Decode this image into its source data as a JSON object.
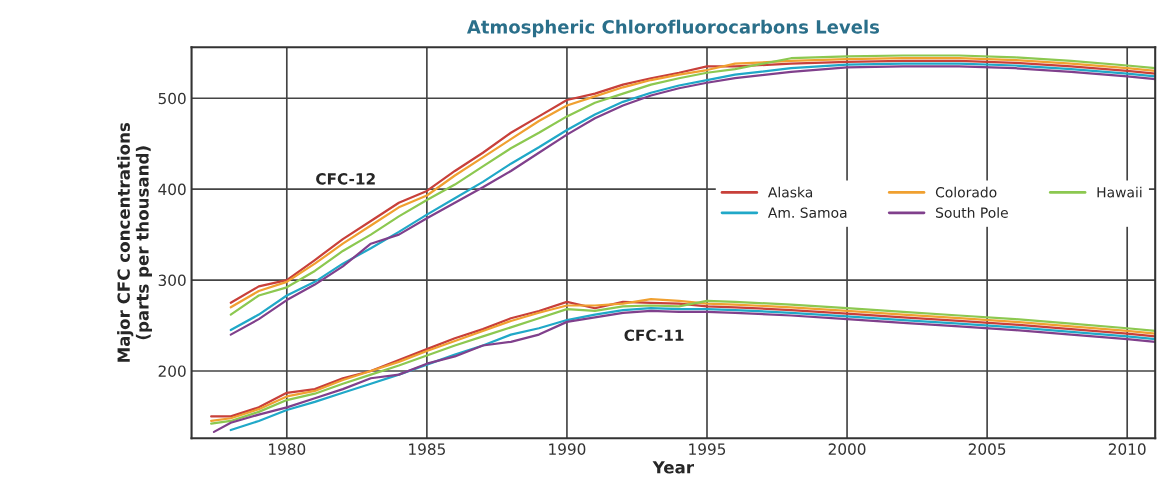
{
  "chart_data": {
    "type": "line",
    "title": "Atmospheric Chlorofluorocarbons Levels",
    "xlabel": "Year",
    "ylabel": "Major CFC concentrations\n(parts per thousand)",
    "xlim": [
      1976.6,
      2011
    ],
    "ylim": [
      126,
      556
    ],
    "xticks": [
      1980,
      1985,
      1990,
      1995,
      2000,
      2005,
      2010
    ],
    "yticks": [
      200,
      300,
      400,
      500
    ],
    "grid": true,
    "legend": "right",
    "line_style": "solid",
    "annotations": [
      "CFC-12",
      "CFC-11"
    ],
    "series": [
      {
        "name": "Alaska",
        "color": "#c8403a",
        "x": [
          1978,
          1979,
          1980,
          1981,
          1982,
          1983,
          1984,
          1985,
          1986,
          1987,
          1988,
          1989,
          1990,
          1991,
          1992,
          1993,
          1994,
          1995,
          1996,
          1998,
          2000,
          2002,
          2004,
          2006,
          2008,
          2010,
          2011
        ],
        "values": [
          275,
          293,
          300,
          322,
          345,
          365,
          385,
          398,
          420,
          440,
          462,
          480,
          498,
          505,
          515,
          522,
          528,
          535,
          535,
          538,
          540,
          541,
          541,
          539,
          535,
          530,
          527
        ]
      },
      {
        "name": "Colorado",
        "color": "#f0a030",
        "x": [
          1978,
          1979,
          1980,
          1981,
          1982,
          1983,
          1984,
          1985,
          1986,
          1987,
          1988,
          1989,
          1990,
          1991,
          1992,
          1993,
          1994,
          1995,
          1996,
          1998,
          2000,
          2002,
          2004,
          2006,
          2008,
          2010,
          2011
        ],
        "values": [
          270,
          288,
          298,
          318,
          340,
          360,
          380,
          393,
          415,
          435,
          455,
          475,
          492,
          502,
          512,
          520,
          526,
          531,
          538,
          541,
          543,
          544,
          544,
          542,
          538,
          533,
          530
        ]
      },
      {
        "name": "Hawaii",
        "color": "#8cc850",
        "x": [
          1978,
          1979,
          1980,
          1981,
          1982,
          1983,
          1984,
          1985,
          1986,
          1987,
          1988,
          1989,
          1990,
          1991,
          1992,
          1993,
          1994,
          1995,
          1996,
          1998,
          2000,
          2002,
          2004,
          2006,
          2008,
          2010,
          2011
        ],
        "values": [
          262,
          283,
          292,
          310,
          332,
          350,
          370,
          388,
          405,
          425,
          445,
          462,
          480,
          495,
          505,
          515,
          522,
          528,
          532,
          544,
          546,
          547,
          547,
          545,
          541,
          536,
          533
        ]
      },
      {
        "name": "Am. Samoa",
        "color": "#20a8c8",
        "x": [
          1978,
          1979,
          1980,
          1981,
          1982,
          1983,
          1984,
          1985,
          1986,
          1987,
          1988,
          1989,
          1990,
          1991,
          1992,
          1993,
          1994,
          1995,
          1996,
          1998,
          2000,
          2002,
          2004,
          2006,
          2008,
          2010,
          2011
        ],
        "values": [
          245,
          262,
          283,
          298,
          318,
          335,
          353,
          372,
          390,
          408,
          428,
          446,
          465,
          482,
          496,
          506,
          514,
          520,
          526,
          533,
          537,
          538,
          538,
          536,
          532,
          527,
          524
        ]
      },
      {
        "name": "South Pole",
        "color": "#80408c",
        "x": [
          1978,
          1979,
          1980,
          1981,
          1982,
          1983,
          1984,
          1985,
          1986,
          1987,
          1988,
          1989,
          1990,
          1991,
          1992,
          1993,
          1994,
          1995,
          1996,
          1998,
          2000,
          2002,
          2004,
          2006,
          2008,
          2010,
          2011
        ],
        "values": [
          240,
          257,
          278,
          295,
          315,
          340,
          350,
          368,
          385,
          402,
          420,
          440,
          460,
          478,
          492,
          503,
          511,
          517,
          522,
          529,
          534,
          535,
          535,
          533,
          529,
          524,
          521
        ]
      },
      {
        "color": "#c8403a",
        "x": [
          1977.3,
          1978,
          1979,
          1980,
          1981,
          1982,
          1983,
          1984,
          1985,
          1986,
          1987,
          1988,
          1989,
          1990,
          1991,
          1992,
          1993,
          1994,
          1995,
          1996,
          1998,
          2000,
          2002,
          2004,
          2006,
          2008,
          2010,
          2011
        ],
        "values": [
          150,
          150,
          160,
          176,
          180,
          192,
          200,
          212,
          224,
          236,
          246,
          258,
          266,
          276,
          269,
          276,
          275,
          274,
          271,
          270,
          267,
          263,
          259,
          255,
          251,
          246,
          241,
          238
        ]
      },
      {
        "color": "#f0a030",
        "x": [
          1977.3,
          1978,
          1979,
          1980,
          1981,
          1982,
          1983,
          1984,
          1985,
          1986,
          1987,
          1988,
          1989,
          1990,
          1991,
          1992,
          1993,
          1994,
          1995,
          1996,
          1998,
          2000,
          2002,
          2004,
          2006,
          2008,
          2010,
          2011
        ],
        "values": [
          145,
          148,
          158,
          172,
          178,
          190,
          200,
          210,
          222,
          233,
          244,
          255,
          264,
          272,
          272,
          274,
          279,
          277,
          274,
          273,
          270,
          266,
          262,
          258,
          254,
          249,
          244,
          241
        ]
      },
      {
        "color": "#8cc850",
        "x": [
          1977.3,
          1978,
          1979,
          1980,
          1981,
          1982,
          1983,
          1984,
          1985,
          1986,
          1987,
          1988,
          1989,
          1990,
          1991,
          1992,
          1993,
          1994,
          1995,
          1996,
          1998,
          2000,
          2002,
          2004,
          2006,
          2008,
          2010,
          2011
        ],
        "values": [
          142,
          145,
          155,
          168,
          175,
          186,
          196,
          206,
          217,
          228,
          238,
          248,
          258,
          268,
          266,
          271,
          272,
          271,
          277,
          276,
          273,
          269,
          265,
          261,
          257,
          252,
          247,
          244
        ]
      },
      {
        "color": "#20a8c8",
        "x": [
          1978,
          1979,
          1980,
          1981,
          1982,
          1983,
          1984,
          1985,
          1986,
          1987,
          1988,
          1989,
          1990,
          1991,
          1992,
          1993,
          1994,
          1995,
          1996,
          1998,
          2000,
          2002,
          2004,
          2006,
          2008,
          2010,
          2011
        ],
        "values": [
          135,
          145,
          157,
          166,
          176,
          186,
          196,
          207,
          218,
          228,
          240,
          247,
          256,
          262,
          267,
          269,
          268,
          268,
          267,
          264,
          260,
          256,
          252,
          248,
          243,
          238,
          235
        ]
      },
      {
        "color": "#80408c",
        "x": [
          1977.4,
          1978,
          1979,
          1980,
          1981,
          1982,
          1983,
          1984,
          1985,
          1986,
          1987,
          1988,
          1989,
          1990,
          1991,
          1992,
          1993,
          1994,
          1995,
          1996,
          1998,
          2000,
          2002,
          2004,
          2006,
          2008,
          2010,
          2011
        ],
        "values": [
          133,
          143,
          152,
          160,
          170,
          180,
          192,
          196,
          208,
          216,
          228,
          232,
          240,
          254,
          259,
          264,
          266,
          265,
          265,
          264,
          261,
          257,
          253,
          249,
          245,
          240,
          235,
          232
        ]
      }
    ]
  }
}
